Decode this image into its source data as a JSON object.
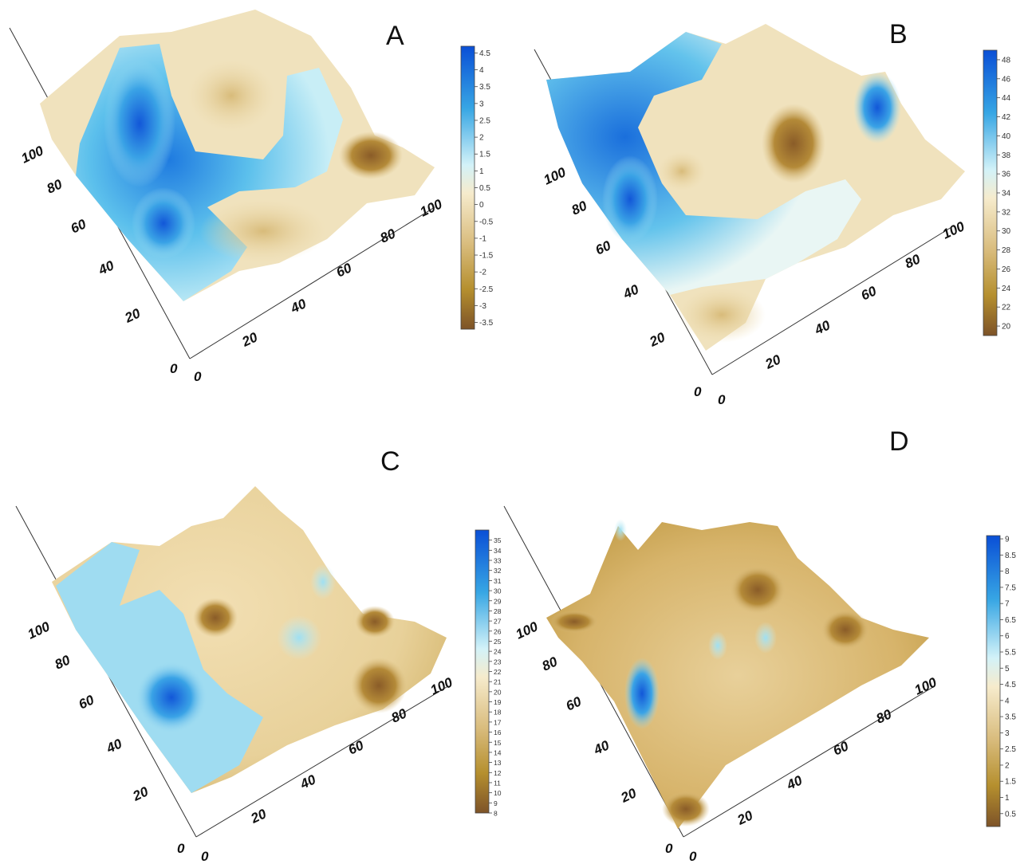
{
  "figure": {
    "panels": [
      "A",
      "B",
      "C",
      "D"
    ]
  },
  "chart_data": [
    {
      "type": "heatmap",
      "panel": "A",
      "title": "A",
      "surface": "3D",
      "x_ticks": [
        "0",
        "20",
        "40",
        "60",
        "80",
        "100"
      ],
      "y_ticks": [
        "0",
        "20",
        "40",
        "60",
        "80",
        "100"
      ],
      "xlim": [
        0,
        100
      ],
      "ylim": [
        0,
        100
      ],
      "colorbar": {
        "ticks": [
          "4.5",
          "4",
          "3.5",
          "3",
          "2.5",
          "2",
          "1.5",
          "1",
          "0.5",
          "0",
          "-0.5",
          "-1",
          "-1.5",
          "-2",
          "-2.5",
          "-3",
          "-3.5"
        ],
        "range": [
          -3.7,
          4.7
        ],
        "colors": [
          "#0a4fd6",
          "#37a6e4",
          "#d3f2f8",
          "#f6ebcc",
          "#d9bc7d",
          "#b58f2e",
          "#7d5328"
        ]
      }
    },
    {
      "type": "heatmap",
      "panel": "B",
      "title": "B",
      "surface": "3D",
      "x_ticks": [
        "0",
        "20",
        "40",
        "60",
        "80",
        "100"
      ],
      "y_ticks": [
        "0",
        "20",
        "40",
        "60",
        "80",
        "100"
      ],
      "xlim": [
        0,
        100
      ],
      "ylim": [
        0,
        100
      ],
      "colorbar": {
        "ticks": [
          "48",
          "46",
          "44",
          "42",
          "40",
          "38",
          "36",
          "34",
          "32",
          "30",
          "28",
          "26",
          "24",
          "22",
          "20"
        ],
        "range": [
          19,
          49
        ],
        "colors": [
          "#0a4fd6",
          "#37a6e4",
          "#d3f2f8",
          "#f6ebcc",
          "#d9bc7d",
          "#b58f2e",
          "#7d5328"
        ]
      }
    },
    {
      "type": "heatmap",
      "panel": "C",
      "title": "C",
      "surface": "3D",
      "x_ticks": [
        "0",
        "20",
        "40",
        "60",
        "80",
        "100"
      ],
      "y_ticks": [
        "0",
        "20",
        "40",
        "60",
        "80",
        "100"
      ],
      "xlim": [
        0,
        100
      ],
      "ylim": [
        0,
        100
      ],
      "colorbar": {
        "ticks": [
          "35",
          "34",
          "33",
          "32",
          "31",
          "30",
          "29",
          "28",
          "27",
          "26",
          "25",
          "24",
          "23",
          "22",
          "21",
          "20",
          "19",
          "18",
          "17",
          "16",
          "15",
          "14",
          "13",
          "12",
          "11",
          "10",
          "9",
          "8"
        ],
        "range": [
          8,
          36
        ],
        "colors": [
          "#0a4fd6",
          "#37a6e4",
          "#d3f2f8",
          "#f6ebcc",
          "#d9bc7d",
          "#b58f2e",
          "#7d5328"
        ]
      }
    },
    {
      "type": "heatmap",
      "panel": "D",
      "title": "D",
      "surface": "3D",
      "x_ticks": [
        "0",
        "20",
        "40",
        "60",
        "80",
        "100"
      ],
      "y_ticks": [
        "0",
        "20",
        "40",
        "60",
        "80",
        "100"
      ],
      "xlim": [
        0,
        100
      ],
      "ylim": [
        0,
        100
      ],
      "colorbar": {
        "ticks": [
          "9",
          "8.5",
          "8",
          "7.5",
          "7",
          "6.5",
          "6",
          "5.5",
          "5",
          "4.5",
          "4",
          "3.5",
          "3",
          "2.5",
          "2",
          "1.5",
          "1",
          "0.5"
        ],
        "range": [
          0.1,
          9.1
        ],
        "colors": [
          "#0a4fd6",
          "#37a6e4",
          "#d3f2f8",
          "#f6ebcc",
          "#d9bc7d",
          "#b58f2e",
          "#7d5328"
        ]
      }
    }
  ]
}
